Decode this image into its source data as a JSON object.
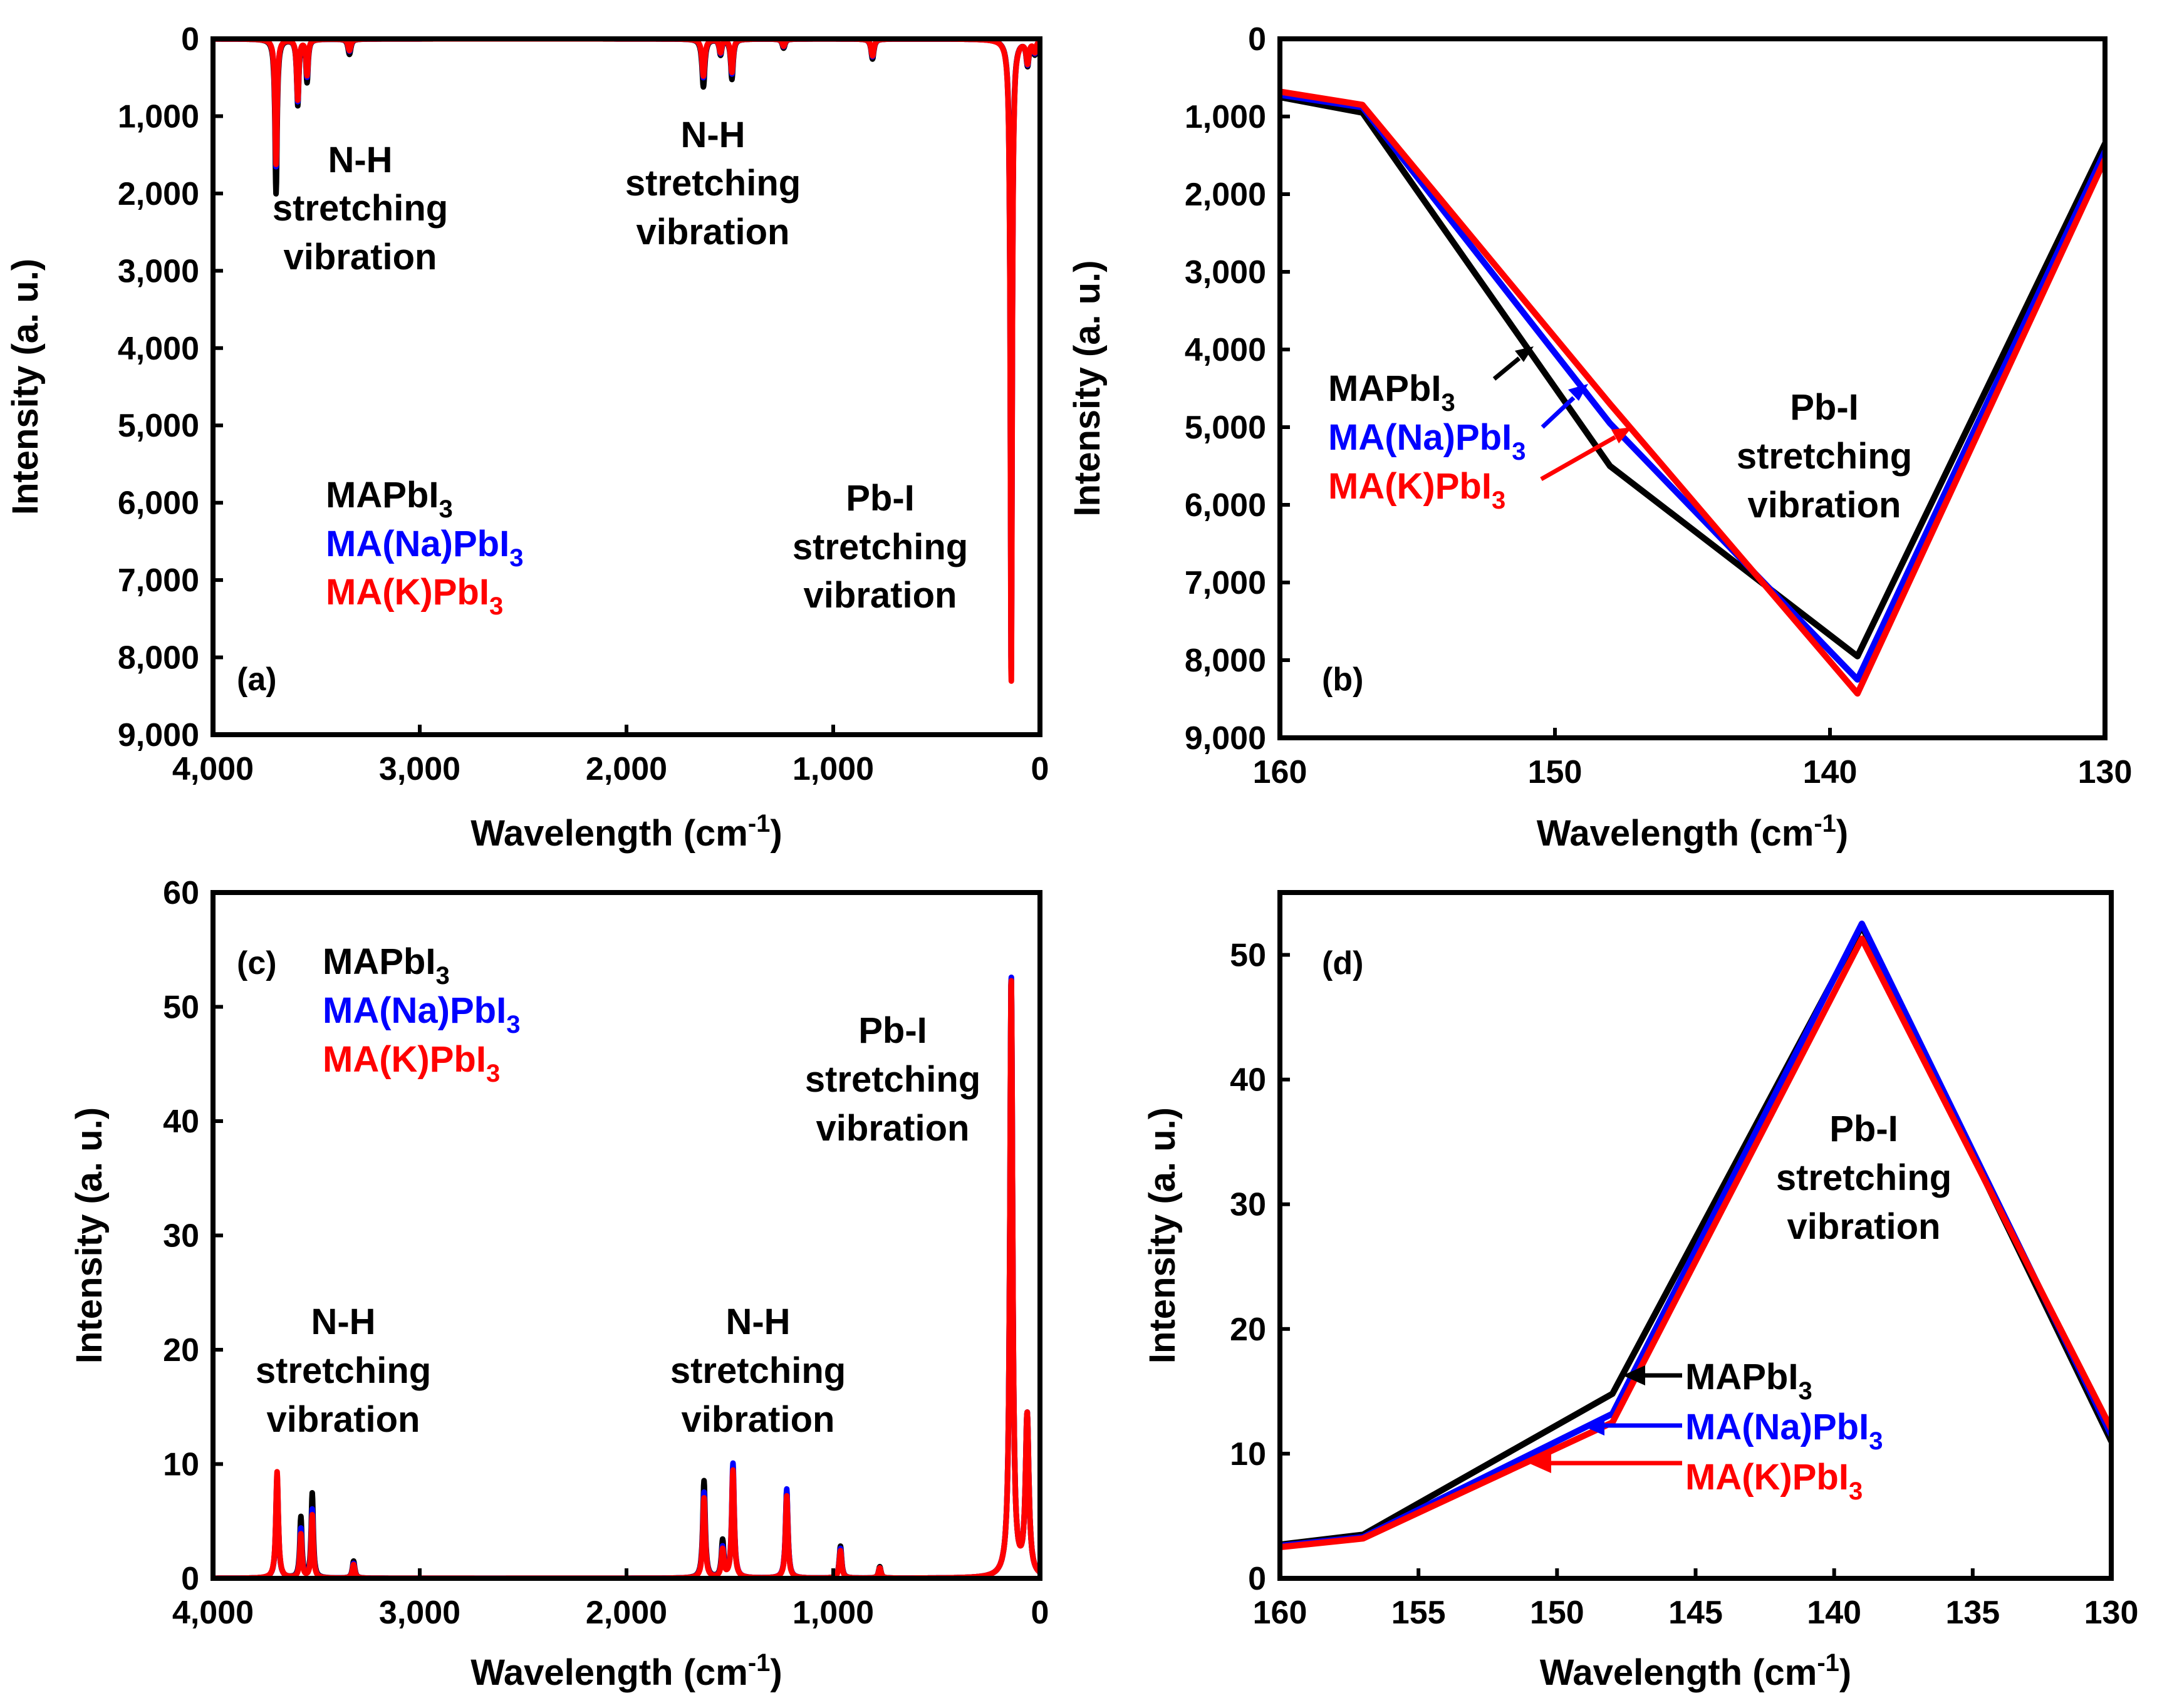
{
  "colors": {
    "MAPbI3": "#000000",
    "MA(Na)PbI3": "#0000ff",
    "MA(K)PbI3": "#ff0000"
  },
  "chart_data": [
    {
      "id": "a",
      "panel_label": "(a)",
      "type": "line",
      "xlabel": "Wavelength (cm-1)",
      "ylabel": "Intensity (a. u.)",
      "xlim": [
        4000,
        0
      ],
      "ylim": [
        0,
        9000
      ],
      "y_inverted": true,
      "xticks": [
        "4,000",
        "3,000",
        "2,000",
        "1,000",
        "0"
      ],
      "yticks": [
        "0",
        "1,000",
        "2,000",
        "3,000",
        "4,000",
        "5,000",
        "6,000",
        "7,000",
        "8,000",
        "9,000"
      ],
      "legend": [
        "MAPbI3",
        "MA(Na)PbI3",
        "MA(K)PbI3"
      ],
      "annotations": [
        {
          "lines": [
            "N-H",
            "stretching",
            "vibration"
          ]
        },
        {
          "lines": [
            "N-H",
            "stretching",
            "vibration"
          ]
        },
        {
          "lines": [
            "Pb-I",
            "stretching",
            "vibration"
          ]
        }
      ],
      "peaks": [
        {
          "x": 3695,
          "w": 6,
          "values": [
            2000,
            1650,
            1620
          ]
        },
        {
          "x": 3590,
          "w": 6,
          "values": [
            850,
            800,
            780
          ]
        },
        {
          "x": 3545,
          "w": 6,
          "values": [
            550,
            480,
            460
          ]
        },
        {
          "x": 3340,
          "w": 8,
          "values": [
            200,
            160,
            150
          ]
        },
        {
          "x": 1628,
          "w": 8,
          "values": [
            620,
            500,
            480
          ]
        },
        {
          "x": 1545,
          "w": 7,
          "values": [
            200,
            180,
            170
          ]
        },
        {
          "x": 1490,
          "w": 7,
          "values": [
            520,
            450,
            430
          ]
        },
        {
          "x": 1240,
          "w": 8,
          "values": [
            120,
            100,
            95
          ]
        },
        {
          "x": 810,
          "w": 8,
          "values": [
            260,
            230,
            220
          ]
        },
        {
          "x": 139,
          "w": 5,
          "values": [
            7950,
            8300,
            8450
          ]
        },
        {
          "x": 60,
          "w": 8,
          "values": [
            320,
            300,
            290
          ]
        },
        {
          "x": 25,
          "w": 8,
          "values": [
            180,
            160,
            150
          ]
        }
      ]
    },
    {
      "id": "b",
      "panel_label": "(b)",
      "type": "line",
      "xlabel": "Wavelength (cm-1)",
      "ylabel": "Intensity (a. u.)",
      "xlim": [
        160,
        130
      ],
      "ylim": [
        0,
        9000
      ],
      "y_inverted": true,
      "xticks": [
        "160",
        "150",
        "140",
        "130"
      ],
      "yticks": [
        "0",
        "1,000",
        "2,000",
        "3,000",
        "4,000",
        "5,000",
        "6,000",
        "7,000",
        "8,000",
        "9,000"
      ],
      "legend": [
        "MAPbI3",
        "MA(Na)PbI3",
        "MA(K)PbI3"
      ],
      "annotations": [
        {
          "lines": [
            "Pb-I",
            "stretching",
            "vibration"
          ]
        }
      ],
      "x": [
        160,
        157,
        148,
        139,
        130
      ],
      "series": [
        {
          "name": "MAPbI3",
          "values": [
            750,
            950,
            5500,
            7950,
            1350
          ]
        },
        {
          "name": "MA(Na)PbI3",
          "values": [
            720,
            880,
            4950,
            8250,
            1450
          ]
        },
        {
          "name": "MA(K)PbI3",
          "values": [
            680,
            850,
            4700,
            8430,
            1550
          ]
        }
      ]
    },
    {
      "id": "c",
      "panel_label": "(c)",
      "type": "line",
      "xlabel": "Wavelength (cm-1)",
      "ylabel": "Intensity (a. u.)",
      "xlim": [
        4000,
        0
      ],
      "ylim": [
        0,
        60
      ],
      "xticks": [
        "4,000",
        "3,000",
        "2,000",
        "1,000",
        "0"
      ],
      "yticks": [
        "0",
        "10",
        "20",
        "30",
        "40",
        "50",
        "60"
      ],
      "legend": [
        "MAPbI3",
        "MA(Na)PbI3",
        "MA(K)PbI3"
      ],
      "annotations": [
        {
          "lines": [
            "N-H",
            "stretching",
            "vibration"
          ]
        },
        {
          "lines": [
            "N-H",
            "stretching",
            "vibration"
          ]
        },
        {
          "lines": [
            "Pb-I",
            "stretching",
            "vibration"
          ]
        }
      ],
      "peaks": [
        {
          "x": 3690,
          "w": 7,
          "values": [
            8.8,
            9.0,
            9.3
          ]
        },
        {
          "x": 3575,
          "w": 6,
          "values": [
            5.3,
            4.3,
            3.8
          ]
        },
        {
          "x": 3520,
          "w": 6,
          "values": [
            7.4,
            6.0,
            5.5
          ]
        },
        {
          "x": 3320,
          "w": 7,
          "values": [
            1.5,
            1.3,
            1.2
          ]
        },
        {
          "x": 1625,
          "w": 7,
          "values": [
            8.5,
            7.5,
            7.0
          ]
        },
        {
          "x": 1535,
          "w": 7,
          "values": [
            3.2,
            2.6,
            2.4
          ]
        },
        {
          "x": 1485,
          "w": 7,
          "values": [
            9.2,
            10.0,
            9.4
          ]
        },
        {
          "x": 1225,
          "w": 7,
          "values": [
            7.6,
            7.8,
            7.2
          ]
        },
        {
          "x": 965,
          "w": 7,
          "values": [
            2.8,
            2.6,
            2.4
          ]
        },
        {
          "x": 775,
          "w": 7,
          "values": [
            1.0,
            0.9,
            0.9
          ]
        },
        {
          "x": 139,
          "w": 8,
          "values": [
            52.5,
            52.7,
            52.4
          ]
        },
        {
          "x": 62,
          "w": 10,
          "values": [
            14.0,
            14.0,
            14.0
          ]
        }
      ]
    },
    {
      "id": "d",
      "panel_label": "(d)",
      "type": "line",
      "xlabel": "Wavelength (cm-1)",
      "ylabel": "Intensity (a. u.)",
      "xlim": [
        160,
        130
      ],
      "ylim": [
        0,
        55
      ],
      "xticks": [
        "160",
        "155",
        "150",
        "145",
        "140",
        "135",
        "130"
      ],
      "yticks": [
        "0",
        "10",
        "20",
        "30",
        "40",
        "50"
      ],
      "legend": [
        "MAPbI3",
        "MA(Na)PbI3",
        "MA(K)PbI3"
      ],
      "annotations": [
        {
          "lines": [
            "Pb-I",
            "stretching",
            "vibration"
          ]
        }
      ],
      "x": [
        160,
        157,
        148,
        139,
        130
      ],
      "series": [
        {
          "name": "MAPbI3",
          "values": [
            2.7,
            3.5,
            14.8,
            52.3,
            11.0
          ]
        },
        {
          "name": "MA(Na)PbI3",
          "values": [
            2.6,
            3.3,
            13.2,
            52.5,
            11.5
          ]
        },
        {
          "name": "MA(K)PbI3",
          "values": [
            2.5,
            3.2,
            12.5,
            51.3,
            12.0
          ]
        }
      ]
    }
  ]
}
